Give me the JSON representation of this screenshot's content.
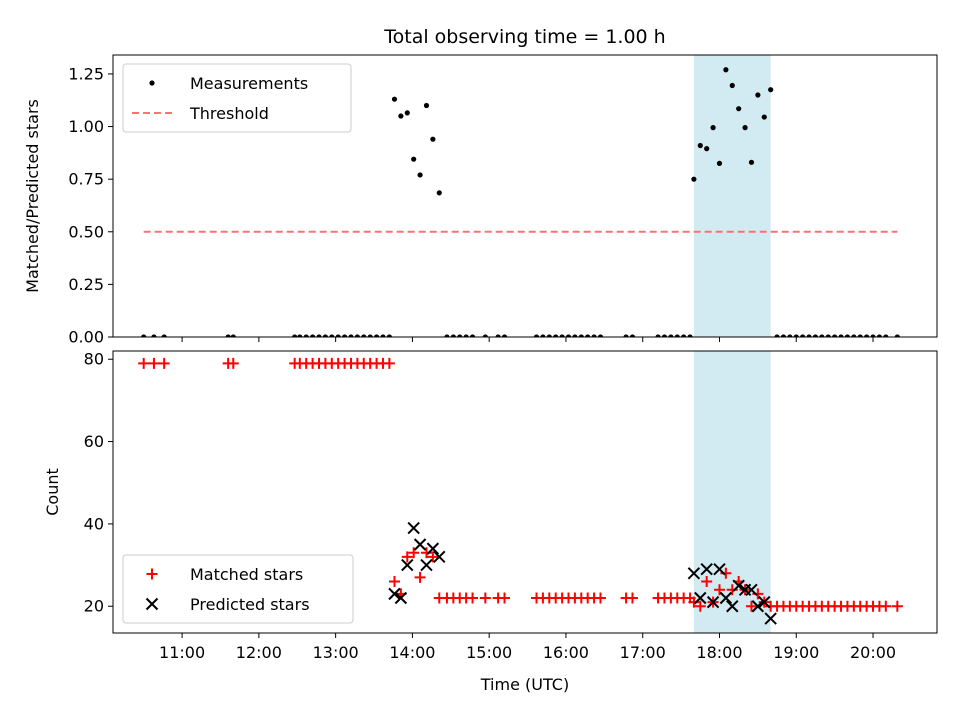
{
  "title": "Total observing time = 1.00 h",
  "colors": {
    "measurements": "#000000",
    "threshold": "#ff7070",
    "matched": "#ff0000",
    "predicted": "#000000",
    "highlight": "#add8e6"
  },
  "chart_data": [
    {
      "type": "scatter",
      "ylabel": "Matched/Predicted stars",
      "ylim": [
        0,
        1.34
      ],
      "yticks": [
        0,
        0.25,
        0.5,
        0.75,
        1.0,
        1.25
      ],
      "ytick_labels": [
        "0.00",
        "0.25",
        "0.50",
        "0.75",
        "1.00",
        "1.25"
      ],
      "xlim": [
        "10:06",
        "20:50"
      ],
      "xtick_labels": [
        "11:00",
        "12:00",
        "13:00",
        "14:00",
        "15:00",
        "16:00",
        "17:00",
        "18:00",
        "19:00",
        "20:00"
      ],
      "legend_position": "top-left",
      "highlight_span": [
        "17:40",
        "18:40"
      ],
      "series": [
        {
          "name": "Measurements",
          "marker": "dot",
          "points": [
            [
              "10:30",
              0
            ],
            [
              "10:38",
              0
            ],
            [
              "10:46",
              0
            ],
            [
              "11:36",
              0
            ],
            [
              "11:40",
              0
            ],
            [
              "12:28",
              0
            ],
            [
              "12:32",
              0
            ],
            [
              "12:37",
              0
            ],
            [
              "12:42",
              0
            ],
            [
              "12:47",
              0
            ],
            [
              "12:52",
              0
            ],
            [
              "12:57",
              0
            ],
            [
              "13:02",
              0
            ],
            [
              "13:07",
              0
            ],
            [
              "13:12",
              0
            ],
            [
              "13:17",
              0
            ],
            [
              "13:22",
              0
            ],
            [
              "13:27",
              0
            ],
            [
              "13:32",
              0
            ],
            [
              "13:37",
              0
            ],
            [
              "13:42",
              0
            ],
            [
              "13:46",
              1.13
            ],
            [
              "13:51",
              1.05
            ],
            [
              "13:56",
              1.065
            ],
            [
              "14:01",
              0.845
            ],
            [
              "14:06",
              0.77
            ],
            [
              "14:11",
              1.1
            ],
            [
              "14:16",
              0.94
            ],
            [
              "14:21",
              0.685
            ],
            [
              "14:27",
              0
            ],
            [
              "14:32",
              0
            ],
            [
              "14:37",
              0
            ],
            [
              "14:42",
              0
            ],
            [
              "14:47",
              0
            ],
            [
              "14:57",
              0
            ],
            [
              "15:07",
              0
            ],
            [
              "15:12",
              0
            ],
            [
              "15:37",
              0
            ],
            [
              "15:42",
              0
            ],
            [
              "15:47",
              0
            ],
            [
              "15:52",
              0
            ],
            [
              "15:57",
              0
            ],
            [
              "16:02",
              0
            ],
            [
              "16:07",
              0
            ],
            [
              "16:12",
              0
            ],
            [
              "16:17",
              0
            ],
            [
              "16:22",
              0
            ],
            [
              "16:27",
              0
            ],
            [
              "16:47",
              0
            ],
            [
              "16:52",
              0
            ],
            [
              "17:12",
              0
            ],
            [
              "17:17",
              0
            ],
            [
              "17:22",
              0
            ],
            [
              "17:27",
              0
            ],
            [
              "17:32",
              0
            ],
            [
              "17:37",
              0
            ],
            [
              "17:40",
              0.75
            ],
            [
              "17:45",
              0.91
            ],
            [
              "17:50",
              0.895
            ],
            [
              "17:55",
              0.995
            ],
            [
              "18:00",
              0.825
            ],
            [
              "18:05",
              1.27
            ],
            [
              "18:10",
              1.195
            ],
            [
              "18:15",
              1.085
            ],
            [
              "18:20",
              0.995
            ],
            [
              "18:25",
              0.83
            ],
            [
              "18:30",
              1.15
            ],
            [
              "18:35",
              1.045
            ],
            [
              "18:40",
              1.175
            ],
            [
              "18:45",
              0
            ],
            [
              "18:50",
              0
            ],
            [
              "18:55",
              0
            ],
            [
              "19:00",
              0
            ],
            [
              "19:05",
              0
            ],
            [
              "19:10",
              0
            ],
            [
              "19:15",
              0
            ],
            [
              "19:20",
              0
            ],
            [
              "19:25",
              0
            ],
            [
              "19:30",
              0
            ],
            [
              "19:35",
              0
            ],
            [
              "19:40",
              0
            ],
            [
              "19:45",
              0
            ],
            [
              "19:50",
              0
            ],
            [
              "19:55",
              0
            ],
            [
              "20:00",
              0
            ],
            [
              "20:05",
              0
            ],
            [
              "20:10",
              0
            ],
            [
              "20:19",
              0
            ]
          ]
        },
        {
          "name": "Threshold",
          "marker": "dashed-line",
          "points": [
            [
              "10:30",
              0.5
            ],
            [
              "20:19",
              0.5
            ]
          ]
        }
      ]
    },
    {
      "type": "scatter",
      "xlabel": "Time (UTC)",
      "ylabel": "Count",
      "ylim": [
        13.5,
        82
      ],
      "yticks": [
        20,
        40,
        60,
        80
      ],
      "ytick_labels": [
        "20",
        "40",
        "60",
        "80"
      ],
      "xlim": [
        "10:06",
        "20:50"
      ],
      "xtick_labels": [
        "11:00",
        "12:00",
        "13:00",
        "14:00",
        "15:00",
        "16:00",
        "17:00",
        "18:00",
        "19:00",
        "20:00"
      ],
      "legend_position": "bottom-left",
      "highlight_span": [
        "17:40",
        "18:40"
      ],
      "series": [
        {
          "name": "Matched stars",
          "marker": "plus",
          "points": [
            [
              "10:30",
              79
            ],
            [
              "10:38",
              79
            ],
            [
              "10:46",
              79
            ],
            [
              "11:36",
              79
            ],
            [
              "11:40",
              79
            ],
            [
              "12:28",
              79
            ],
            [
              "12:32",
              79
            ],
            [
              "12:37",
              79
            ],
            [
              "12:42",
              79
            ],
            [
              "12:47",
              79
            ],
            [
              "12:52",
              79
            ],
            [
              "12:57",
              79
            ],
            [
              "13:02",
              79
            ],
            [
              "13:07",
              79
            ],
            [
              "13:12",
              79
            ],
            [
              "13:17",
              79
            ],
            [
              "13:22",
              79
            ],
            [
              "13:27",
              79
            ],
            [
              "13:32",
              79
            ],
            [
              "13:37",
              79
            ],
            [
              "13:42",
              79
            ],
            [
              "13:46",
              26
            ],
            [
              "13:51",
              23
            ],
            [
              "13:56",
              32
            ],
            [
              "14:01",
              33
            ],
            [
              "14:06",
              27
            ],
            [
              "14:11",
              33
            ],
            [
              "14:16",
              32
            ],
            [
              "14:21",
              22
            ],
            [
              "14:27",
              22
            ],
            [
              "14:32",
              22
            ],
            [
              "14:37",
              22
            ],
            [
              "14:42",
              22
            ],
            [
              "14:47",
              22
            ],
            [
              "14:57",
              22
            ],
            [
              "15:07",
              22
            ],
            [
              "15:12",
              22
            ],
            [
              "15:37",
              22
            ],
            [
              "15:42",
              22
            ],
            [
              "15:47",
              22
            ],
            [
              "15:52",
              22
            ],
            [
              "15:57",
              22
            ],
            [
              "16:02",
              22
            ],
            [
              "16:07",
              22
            ],
            [
              "16:12",
              22
            ],
            [
              "16:17",
              22
            ],
            [
              "16:22",
              22
            ],
            [
              "16:27",
              22
            ],
            [
              "16:47",
              22
            ],
            [
              "16:52",
              22
            ],
            [
              "17:12",
              22
            ],
            [
              "17:17",
              22
            ],
            [
              "17:22",
              22
            ],
            [
              "17:27",
              22
            ],
            [
              "17:32",
              22
            ],
            [
              "17:37",
              22
            ],
            [
              "17:40",
              21
            ],
            [
              "17:45",
              20
            ],
            [
              "17:50",
              26
            ],
            [
              "17:55",
              21
            ],
            [
              "18:00",
              24
            ],
            [
              "18:05",
              28
            ],
            [
              "18:10",
              24
            ],
            [
              "18:15",
              26
            ],
            [
              "18:20",
              24
            ],
            [
              "18:25",
              20
            ],
            [
              "18:30",
              23
            ],
            [
              "18:35",
              21
            ],
            [
              "18:40",
              20
            ],
            [
              "18:45",
              20
            ],
            [
              "18:50",
              20
            ],
            [
              "18:55",
              20
            ],
            [
              "19:00",
              20
            ],
            [
              "19:05",
              20
            ],
            [
              "19:10",
              20
            ],
            [
              "19:15",
              20
            ],
            [
              "19:20",
              20
            ],
            [
              "19:25",
              20
            ],
            [
              "19:30",
              20
            ],
            [
              "19:35",
              20
            ],
            [
              "19:40",
              20
            ],
            [
              "19:45",
              20
            ],
            [
              "19:50",
              20
            ],
            [
              "19:55",
              20
            ],
            [
              "20:00",
              20
            ],
            [
              "20:05",
              20
            ],
            [
              "20:10",
              20
            ],
            [
              "20:19",
              20
            ]
          ]
        },
        {
          "name": "Predicted stars",
          "marker": "x",
          "points": [
            [
              "13:46",
              23
            ],
            [
              "13:51",
              22
            ],
            [
              "13:56",
              30
            ],
            [
              "14:01",
              39
            ],
            [
              "14:06",
              35
            ],
            [
              "14:11",
              30
            ],
            [
              "14:16",
              34
            ],
            [
              "14:21",
              32
            ],
            [
              "17:40",
              28
            ],
            [
              "17:45",
              22
            ],
            [
              "17:50",
              29
            ],
            [
              "17:55",
              21
            ],
            [
              "18:00",
              29
            ],
            [
              "18:05",
              22
            ],
            [
              "18:10",
              20
            ],
            [
              "18:15",
              25
            ],
            [
              "18:20",
              24
            ],
            [
              "18:25",
              24
            ],
            [
              "18:30",
              20
            ],
            [
              "18:35",
              21
            ],
            [
              "18:40",
              17
            ]
          ]
        }
      ]
    }
  ]
}
